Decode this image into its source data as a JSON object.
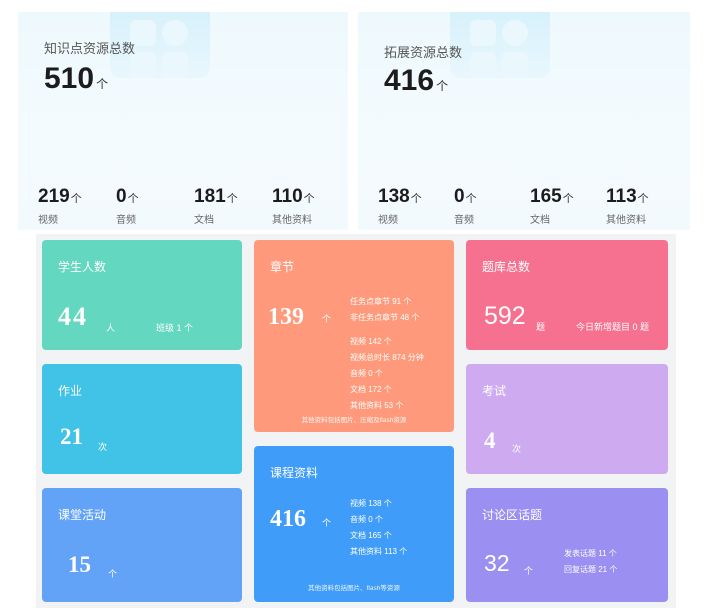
{
  "knowledge": {
    "title": "知识点资源总数",
    "total": "510",
    "unit": "个",
    "stats": [
      {
        "value": "219",
        "unit": "个",
        "label": "视频"
      },
      {
        "value": "0",
        "unit": "个",
        "label": "音频"
      },
      {
        "value": "181",
        "unit": "个",
        "label": "文档"
      },
      {
        "value": "110",
        "unit": "个",
        "label": "其他资料"
      }
    ]
  },
  "extended": {
    "title": "拓展资源总数",
    "total": "416",
    "unit": "个",
    "stats": [
      {
        "value": "138",
        "unit": "个",
        "label": "视频"
      },
      {
        "value": "0",
        "unit": "个",
        "label": "音频"
      },
      {
        "value": "165",
        "unit": "个",
        "label": "文档"
      },
      {
        "value": "113",
        "unit": "个",
        "label": "其他资料"
      }
    ]
  },
  "students": {
    "title": "学生人数",
    "value": "44",
    "unit": "人",
    "extra": "班级 1 个",
    "color": "#63d7bf"
  },
  "homework": {
    "title": "作业",
    "value": "21",
    "unit": "次",
    "color": "#40c3e6"
  },
  "activity": {
    "title": "课堂活动",
    "value": "15",
    "unit": "个",
    "color": "#62a2f7"
  },
  "chapter": {
    "title": "章节",
    "value": "139",
    "unit": "个",
    "color": "#fe9a7b",
    "lines": [
      "任务点章节 91 个",
      "非任务点章节 48 个"
    ],
    "details": [
      "视频 142 个",
      "视频总时长 874 分钟",
      "音频 0 个",
      "文档 172 个",
      "其他资料 53 个"
    ],
    "note": "其他资料包括图片、压缩及flash资源"
  },
  "course": {
    "title": "课程资料",
    "value": "416",
    "unit": "个",
    "color": "#3f9cf9",
    "details": [
      "视频 138 个",
      "音频 0 个",
      "文档 165 个",
      "其他资料 113 个"
    ],
    "note": "其他资料包括图片、flash等资源"
  },
  "bank": {
    "title": "题库总数",
    "value": "592",
    "unit": "题",
    "extra": "今日新增题目 0 题",
    "color": "#f6708f"
  },
  "exam": {
    "title": "考试",
    "value": "4",
    "unit": "次",
    "color": "#ceaaf1"
  },
  "discussion": {
    "title": "讨论区话题",
    "value": "32",
    "unit": "个",
    "color": "#9b8ff1",
    "details": [
      "发表话题 11 个",
      "回复话题 21 个"
    ]
  }
}
